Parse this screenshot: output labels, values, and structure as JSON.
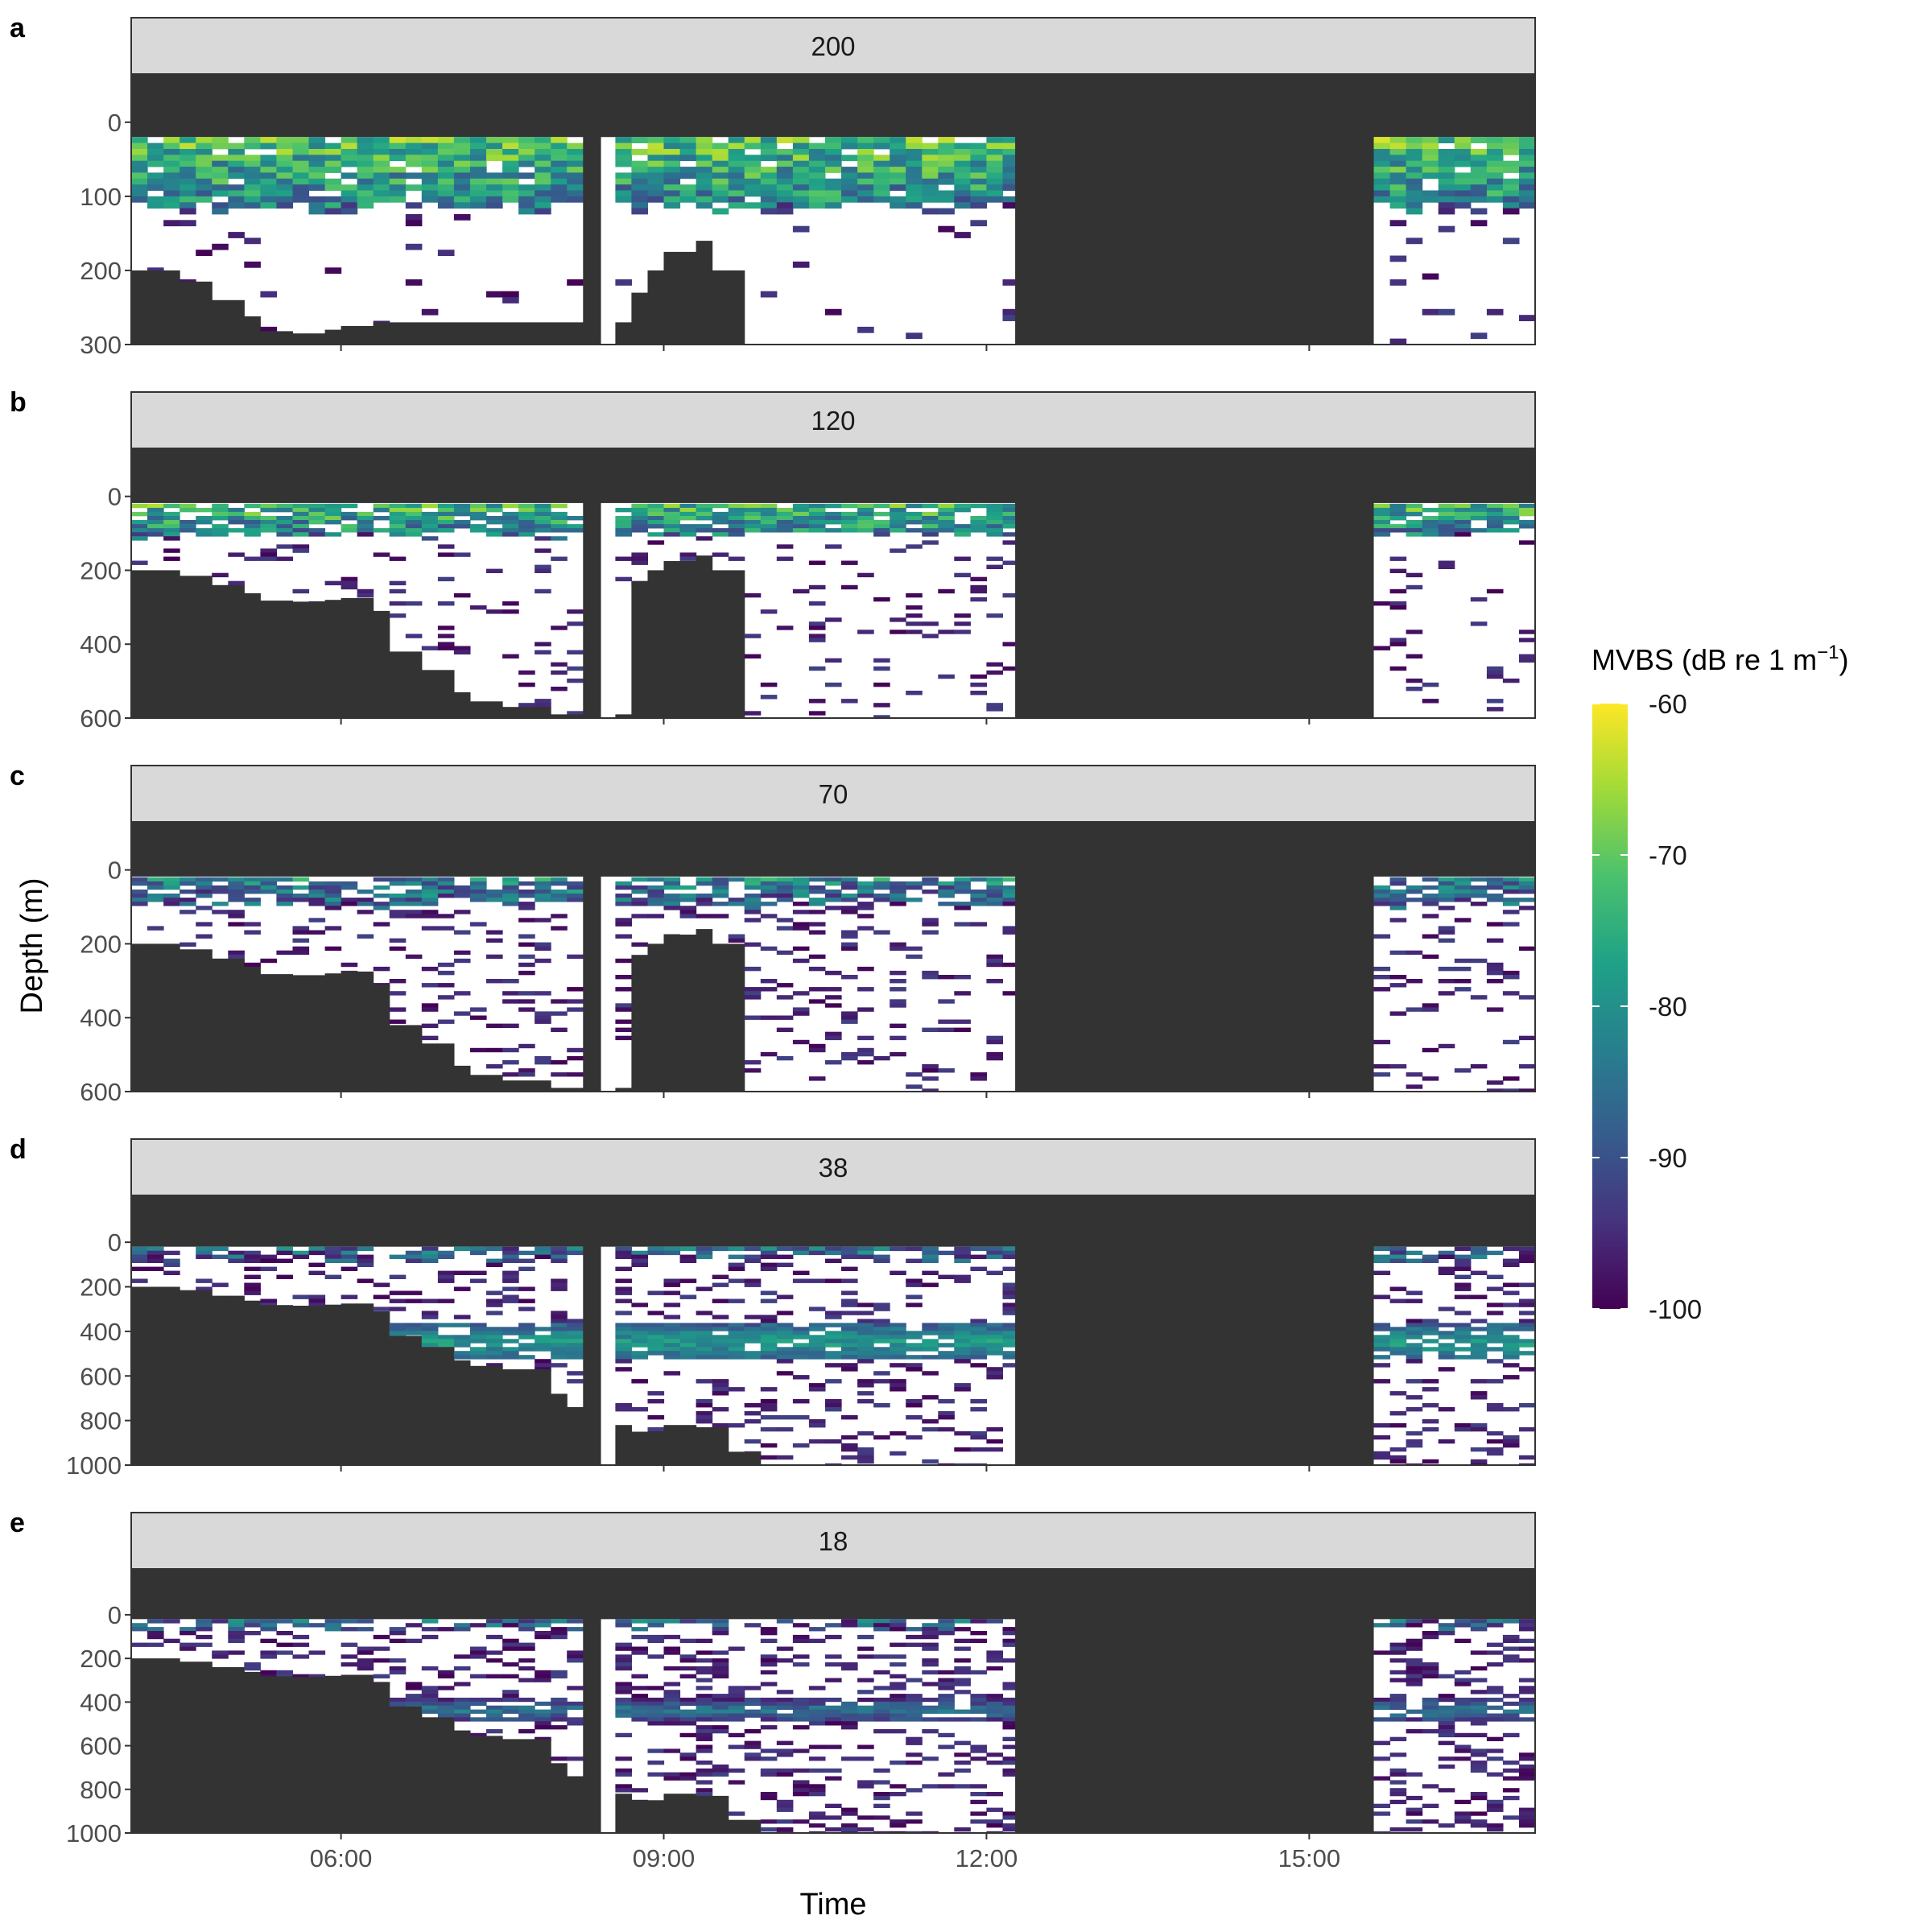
{
  "figure": {
    "ylabel": "Depth (m)",
    "xlabel": "Time"
  },
  "legend": {
    "title": "MVBS (dB re 1 m",
    "title_sup": "−1",
    "title_close": ")",
    "ticks": [
      "-60",
      "-70",
      "-80",
      "-90",
      "-100"
    ],
    "range": [
      -100,
      -60
    ],
    "colors": [
      "#440154",
      "#46327e",
      "#365c8d",
      "#277f8e",
      "#1fa187",
      "#4ac16d",
      "#a0da39",
      "#fde725"
    ]
  },
  "chart_data": {
    "type": "heatmap",
    "x_axis": {
      "ticks": [
        "06:00",
        "09:00",
        "12:00",
        "15:00"
      ],
      "range": [
        "04:03",
        "17:06"
      ]
    },
    "no_data_periods": [
      {
        "start": "08:15",
        "end": "08:25"
      },
      {
        "start": "12:16",
        "end": "15:36"
      }
    ],
    "panels": [
      {
        "panel_label": "a",
        "strip": "200",
        "ylim": [
          300,
          -65
        ],
        "yticks": [
          "0",
          "100",
          "200",
          "300"
        ],
        "scattering_layer": {
          "top": 20,
          "bottom": 120,
          "peak_db": -62
        },
        "seafloor": [
          {
            "time": "04:03",
            "depth": 200
          },
          {
            "time": "04:30",
            "depth": 215
          },
          {
            "time": "04:45",
            "depth": 240
          },
          {
            "time": "05:00",
            "depth": 262
          },
          {
            "time": "05:15",
            "depth": 282
          },
          {
            "time": "05:30",
            "depth": 285
          },
          {
            "time": "05:45",
            "depth": 280
          },
          {
            "time": "06:00",
            "depth": 275
          },
          {
            "time": "06:10",
            "depth": 270
          },
          {
            "time": "08:40",
            "depth": 230
          },
          {
            "time": "08:50",
            "depth": 200
          },
          {
            "time": "09:00",
            "depth": 175
          },
          {
            "time": "09:10",
            "depth": 160
          },
          {
            "time": "09:25",
            "depth": 200
          }
        ]
      },
      {
        "panel_label": "b",
        "strip": "120",
        "ylim": [
          600,
          -130
        ],
        "yticks": [
          "0",
          "200",
          "400",
          "600"
        ],
        "scattering_layer": {
          "top": 20,
          "bottom": 100,
          "peak_db": -62
        },
        "seafloor": [
          {
            "time": "04:03",
            "depth": 200
          },
          {
            "time": "04:30",
            "depth": 215
          },
          {
            "time": "04:45",
            "depth": 240
          },
          {
            "time": "05:00",
            "depth": 262
          },
          {
            "time": "05:15",
            "depth": 282
          },
          {
            "time": "05:30",
            "depth": 285
          },
          {
            "time": "05:45",
            "depth": 280
          },
          {
            "time": "06:00",
            "depth": 275
          },
          {
            "time": "06:15",
            "depth": 310
          },
          {
            "time": "06:25",
            "depth": 420
          },
          {
            "time": "06:40",
            "depth": 470
          },
          {
            "time": "06:55",
            "depth": 530
          },
          {
            "time": "07:10",
            "depth": 555
          },
          {
            "time": "07:30",
            "depth": 570
          },
          {
            "time": "07:55",
            "depth": 590
          },
          {
            "time": "08:40",
            "depth": 230
          },
          {
            "time": "08:50",
            "depth": 200
          },
          {
            "time": "09:00",
            "depth": 175
          },
          {
            "time": "09:10",
            "depth": 160
          },
          {
            "time": "09:25",
            "depth": 200
          }
        ]
      },
      {
        "panel_label": "c",
        "strip": "70",
        "ylim": [
          600,
          -130
        ],
        "yticks": [
          "0",
          "200",
          "400",
          "600"
        ],
        "scattering_layer": {
          "top": 20,
          "bottom": 90,
          "peak_db": -62
        },
        "seafloor": [
          {
            "time": "04:03",
            "depth": 200
          },
          {
            "time": "04:30",
            "depth": 215
          },
          {
            "time": "04:45",
            "depth": 240
          },
          {
            "time": "05:00",
            "depth": 262
          },
          {
            "time": "05:15",
            "depth": 282
          },
          {
            "time": "05:30",
            "depth": 285
          },
          {
            "time": "05:45",
            "depth": 280
          },
          {
            "time": "06:00",
            "depth": 275
          },
          {
            "time": "06:15",
            "depth": 310
          },
          {
            "time": "06:25",
            "depth": 420
          },
          {
            "time": "06:40",
            "depth": 470
          },
          {
            "time": "06:55",
            "depth": 530
          },
          {
            "time": "07:10",
            "depth": 555
          },
          {
            "time": "07:30",
            "depth": 570
          },
          {
            "time": "07:55",
            "depth": 590
          },
          {
            "time": "08:40",
            "depth": 230
          },
          {
            "time": "08:50",
            "depth": 200
          },
          {
            "time": "09:00",
            "depth": 175
          },
          {
            "time": "09:10",
            "depth": 160
          },
          {
            "time": "09:25",
            "depth": 200
          }
        ]
      },
      {
        "panel_label": "d",
        "strip": "38",
        "ylim": [
          1000,
          -210
        ],
        "yticks": [
          "0",
          "200",
          "400",
          "600",
          "800",
          "1000"
        ],
        "scattering_layer": {
          "top": 360,
          "bottom": 520,
          "peak_db": -78
        },
        "seafloor": [
          {
            "time": "04:03",
            "depth": 200
          },
          {
            "time": "04:30",
            "depth": 215
          },
          {
            "time": "04:45",
            "depth": 240
          },
          {
            "time": "05:00",
            "depth": 262
          },
          {
            "time": "05:15",
            "depth": 282
          },
          {
            "time": "05:30",
            "depth": 285
          },
          {
            "time": "05:45",
            "depth": 280
          },
          {
            "time": "06:00",
            "depth": 275
          },
          {
            "time": "06:15",
            "depth": 310
          },
          {
            "time": "06:25",
            "depth": 420
          },
          {
            "time": "06:40",
            "depth": 470
          },
          {
            "time": "06:55",
            "depth": 530
          },
          {
            "time": "07:10",
            "depth": 555
          },
          {
            "time": "07:30",
            "depth": 570
          },
          {
            "time": "07:50",
            "depth": 580
          },
          {
            "time": "07:55",
            "depth": 680
          },
          {
            "time": "08:05",
            "depth": 740
          },
          {
            "time": "08:15",
            "depth": 820
          },
          {
            "time": "08:40",
            "depth": 850
          },
          {
            "time": "08:55",
            "depth": 820
          },
          {
            "time": "09:15",
            "depth": 830
          },
          {
            "time": "09:30",
            "depth": 940
          }
        ]
      },
      {
        "panel_label": "e",
        "strip": "18",
        "ylim": [
          1000,
          -210
        ],
        "yticks": [
          "0",
          "200",
          "400",
          "600",
          "800",
          "1000"
        ],
        "scattering_layer": {
          "top": 380,
          "bottom": 480,
          "peak_db": -84
        },
        "seafloor": [
          {
            "time": "04:03",
            "depth": 200
          },
          {
            "time": "04:30",
            "depth": 215
          },
          {
            "time": "04:45",
            "depth": 240
          },
          {
            "time": "05:00",
            "depth": 262
          },
          {
            "time": "05:15",
            "depth": 282
          },
          {
            "time": "05:30",
            "depth": 285
          },
          {
            "time": "05:45",
            "depth": 280
          },
          {
            "time": "06:00",
            "depth": 275
          },
          {
            "time": "06:15",
            "depth": 310
          },
          {
            "time": "06:25",
            "depth": 420
          },
          {
            "time": "06:40",
            "depth": 470
          },
          {
            "time": "06:55",
            "depth": 530
          },
          {
            "time": "07:10",
            "depth": 555
          },
          {
            "time": "07:30",
            "depth": 570
          },
          {
            "time": "07:50",
            "depth": 580
          },
          {
            "time": "07:55",
            "depth": 680
          },
          {
            "time": "08:05",
            "depth": 740
          },
          {
            "time": "08:15",
            "depth": 820
          },
          {
            "time": "08:40",
            "depth": 850
          },
          {
            "time": "08:55",
            "depth": 820
          },
          {
            "time": "09:15",
            "depth": 830
          },
          {
            "time": "09:30",
            "depth": 940
          }
        ]
      }
    ]
  }
}
